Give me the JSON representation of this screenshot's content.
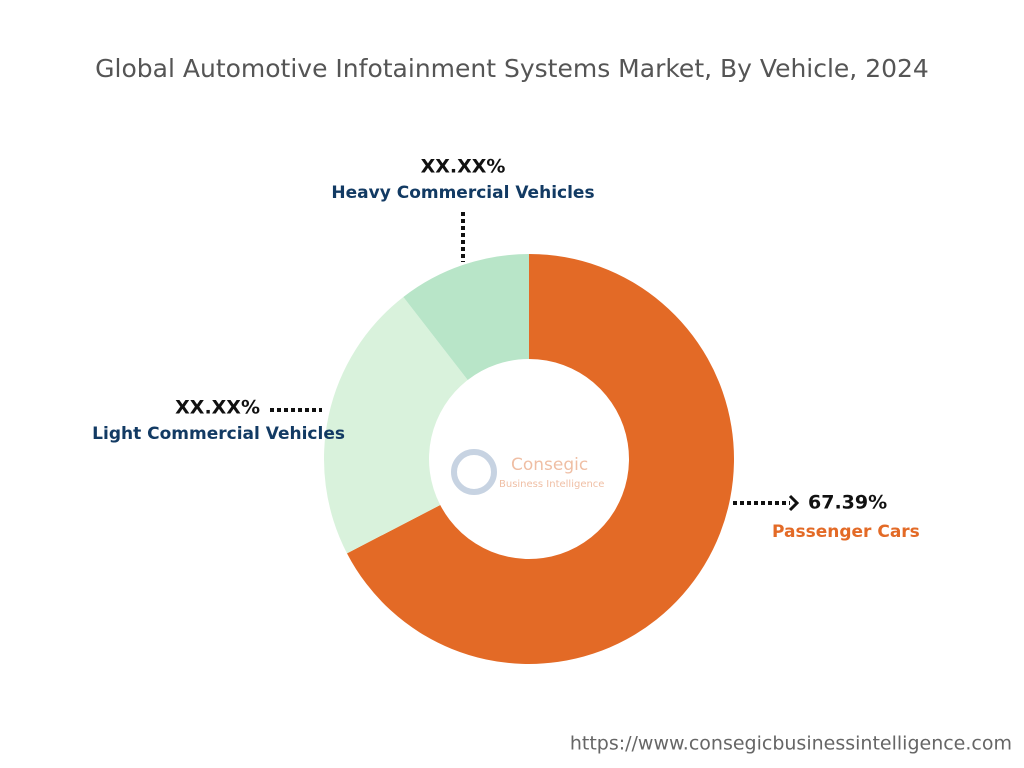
{
  "chart_data": {
    "type": "pie",
    "title": "Global Automotive Infotainment Systems Market, By Vehicle, 2024",
    "categories": [
      "Passenger Cars",
      "Light Commercial Vehicles",
      "Heavy Commercial Vehicles"
    ],
    "values": [
      67.39,
      22.11,
      10.5
    ],
    "value_labels": [
      "67.39%",
      "XX.XX%",
      "XX.XX%"
    ],
    "colors": [
      "#e36a26",
      "#d9f2dc",
      "#b8e5c8"
    ],
    "label_colors": [
      "#e36a26",
      "#123a63",
      "#123a63"
    ]
  },
  "watermark": {
    "name": "Consegic",
    "tagline": "Business Intelligence"
  },
  "footer_url": "https://www.consegicbusinessintelligence.com"
}
